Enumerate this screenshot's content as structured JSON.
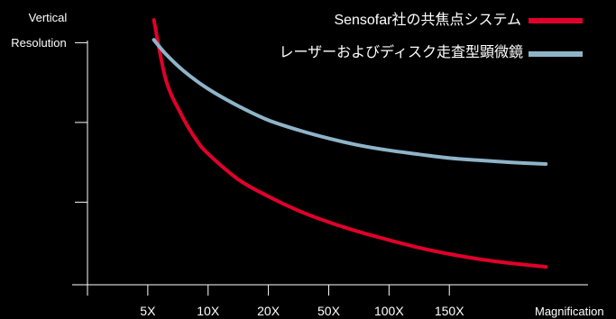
{
  "chart_data": {
    "type": "line",
    "ylabel_lines": [
      "Vertical",
      "Resolution"
    ],
    "xlabel": "Magnification",
    "categories": [
      "5X",
      "10X",
      "20X",
      "50X",
      "100X",
      "150X"
    ],
    "series": [
      {
        "name": "Sensofar社の共焦点システム",
        "color": "#e0002a",
        "x": [
          0.1,
          0.3,
          0.55,
          0.8,
          1.0,
          1.5,
          2.0,
          2.5,
          3.0,
          3.5,
          4.0,
          4.5,
          5.0,
          5.5,
          6.0,
          6.6
        ],
        "y": [
          0.93,
          0.72,
          0.6,
          0.51,
          0.46,
          0.37,
          0.31,
          0.26,
          0.22,
          0.186,
          0.157,
          0.13,
          0.108,
          0.09,
          0.076,
          0.063
        ]
      },
      {
        "name": "レーザーおよびディスク走査型顕微鏡",
        "color": "#8fb4c8",
        "x": [
          0.1,
          0.3,
          0.6,
          1.0,
          1.5,
          2.0,
          2.5,
          3.0,
          3.5,
          4.0,
          4.5,
          5.0,
          5.5,
          6.0,
          6.6
        ],
        "y": [
          0.86,
          0.81,
          0.75,
          0.688,
          0.628,
          0.578,
          0.543,
          0.514,
          0.49,
          0.472,
          0.458,
          0.445,
          0.437,
          0.43,
          0.424
        ]
      }
    ],
    "xlim": [
      -1,
      7.3
    ],
    "ylim": [
      0,
      1
    ],
    "grid": false,
    "legend": "top-right"
  }
}
